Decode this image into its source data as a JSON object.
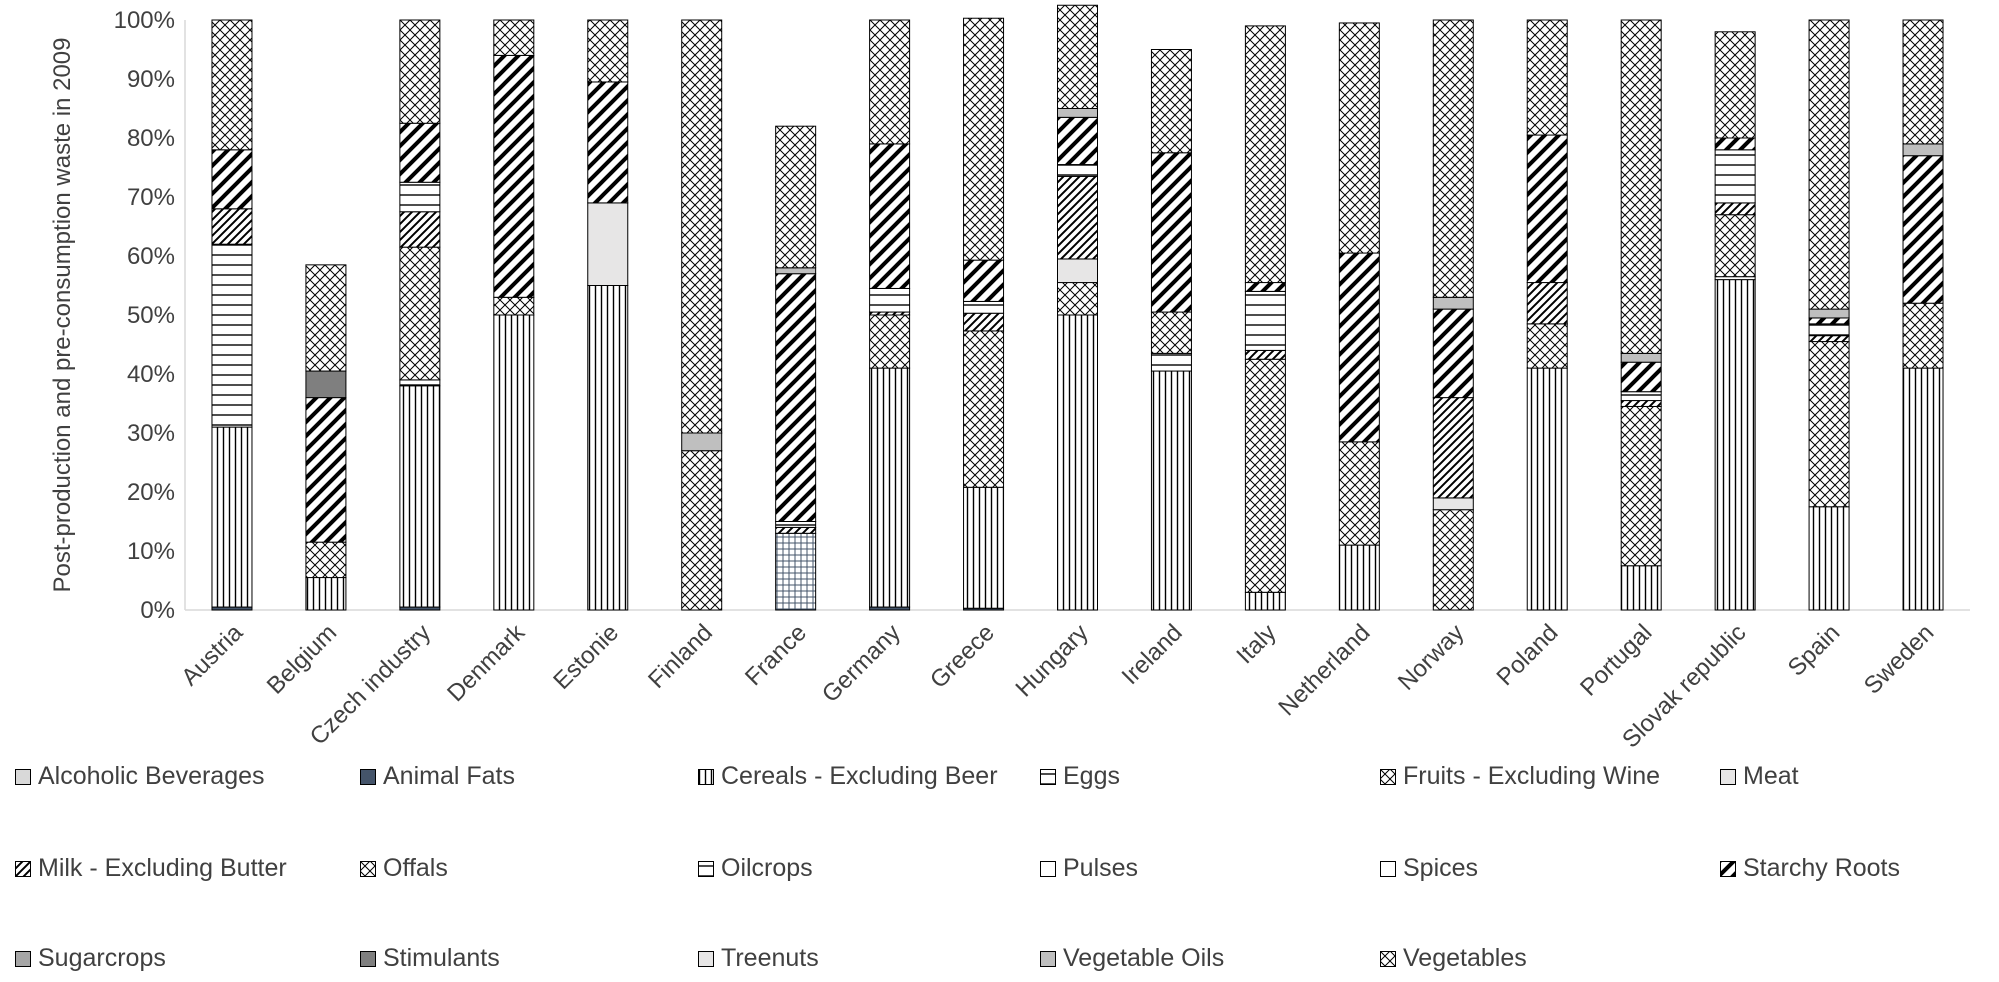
{
  "chart_data": {
    "type": "bar",
    "stacked": true,
    "title": "",
    "xlabel": "",
    "ylabel": "Post-production and pre-consumption waste in 2009",
    "ylim": [
      0,
      100
    ],
    "yticks": [
      "0%",
      "10%",
      "20%",
      "30%",
      "40%",
      "50%",
      "60%",
      "70%",
      "80%",
      "90%",
      "100%"
    ],
    "categories": [
      "Austria",
      "Belgium",
      "Czech industry",
      "Denmark",
      "Estonie",
      "Finland",
      "France",
      "Germany",
      "Greece",
      "Hungary",
      "Ireland",
      "Italy",
      "Netherland",
      "Norway",
      "Poland",
      "Portugal",
      "Slovak republic",
      "Spain",
      "Sweden"
    ],
    "series": [
      {
        "name": "Alcoholic Beverages",
        "color": "#d9d9d9",
        "pattern": "solid-light",
        "values": [
          0,
          0,
          0,
          0,
          0,
          0,
          0,
          0,
          0,
          0,
          0,
          0,
          0,
          0,
          0,
          0,
          0,
          0,
          0
        ]
      },
      {
        "name": "Animal Fats",
        "color": "#44546a",
        "pattern": "solid-dark",
        "values": [
          0.5,
          0,
          0.5,
          0,
          0,
          0,
          0,
          0.5,
          0.3,
          0,
          0,
          0,
          0,
          0,
          0,
          0,
          0,
          0,
          0
        ]
      },
      {
        "name": "Cereals - Excluding Beer",
        "color": "#000000",
        "pattern": "vertical",
        "values": [
          30.5,
          5.5,
          37.5,
          50,
          55,
          0,
          0,
          40.5,
          20.5,
          50,
          40.5,
          3,
          11,
          0,
          41,
          7.5,
          56,
          17.5,
          41
        ]
      },
      {
        "name": "Eggs",
        "color": "#000000",
        "pattern": "horizontal",
        "values": [
          31,
          0,
          1,
          0,
          0,
          0,
          13,
          0,
          0,
          0,
          3,
          0,
          0,
          0,
          0,
          0,
          0.5,
          0,
          0
        ]
      },
      {
        "name": "Fruits - Excluding Wine",
        "color": "#000000",
        "pattern": "crosshatch",
        "values": [
          0,
          6,
          22.5,
          3,
          0,
          27,
          0,
          9,
          26.5,
          5.5,
          7,
          39.5,
          17.5,
          17,
          7.5,
          27,
          10.5,
          28,
          11
        ]
      },
      {
        "name": "Meat",
        "color": "#e7e6e6",
        "pattern": "solid-light",
        "values": [
          0,
          0,
          0,
          0,
          14,
          0,
          0,
          0,
          0,
          4,
          0,
          0,
          0,
          2,
          0,
          0,
          0,
          0,
          0
        ]
      },
      {
        "name": "Milk - Excluding Butter",
        "color": "#000000",
        "pattern": "diagonal",
        "values": [
          6,
          0,
          6,
          0,
          0,
          0,
          1,
          0.5,
          3,
          14,
          0,
          1.5,
          0,
          17,
          7,
          1,
          2,
          1,
          0
        ]
      },
      {
        "name": "Offals",
        "color": "#000000",
        "pattern": "crosshatch",
        "values": [
          0,
          0,
          0,
          0,
          0,
          0,
          0,
          0,
          0,
          0,
          0,
          0,
          0,
          0,
          0,
          0,
          0,
          0,
          0
        ]
      },
      {
        "name": "Oilcrops",
        "color": "#000000",
        "pattern": "horizontal",
        "values": [
          0,
          0,
          5,
          0,
          0,
          0,
          1,
          4,
          2,
          2,
          0,
          10,
          0,
          0,
          0,
          1.5,
          9,
          2,
          0
        ]
      },
      {
        "name": "Pulses",
        "color": "#ffffff",
        "pattern": "outline",
        "values": [
          0,
          0,
          0,
          0,
          0,
          0,
          0,
          0,
          0,
          0,
          0,
          0,
          0,
          0,
          0,
          0,
          0,
          0,
          0
        ]
      },
      {
        "name": "Spices",
        "color": "#ffffff",
        "pattern": "outline",
        "values": [
          0,
          0,
          0,
          0,
          0,
          0,
          0,
          0,
          0,
          0,
          0,
          0,
          0,
          0,
          0,
          0,
          0,
          0,
          0
        ]
      },
      {
        "name": "Starchy Roots",
        "color": "#000000",
        "pattern": "diagonal-bold",
        "values": [
          10,
          24.5,
          10,
          41,
          20.5,
          0,
          42,
          24.5,
          7,
          8,
          27,
          1.5,
          32,
          15,
          25,
          5,
          2,
          1,
          25
        ]
      },
      {
        "name": "Sugarcrops",
        "color": "#a6a6a6",
        "pattern": "solid-mid",
        "values": [
          0,
          0,
          0,
          0,
          0,
          0,
          0,
          0,
          0,
          0,
          0,
          0,
          0,
          0,
          0,
          0,
          0,
          0,
          0
        ]
      },
      {
        "name": "Stimulants",
        "color": "#7f7f7f",
        "pattern": "solid-dark",
        "values": [
          0,
          4.5,
          0,
          0,
          0,
          0,
          0,
          0,
          0,
          0,
          0,
          0,
          0,
          0,
          0,
          0,
          0,
          0,
          0
        ]
      },
      {
        "name": "Treenuts",
        "color": "#e7e6e6",
        "pattern": "solid-light",
        "values": [
          0,
          0,
          0,
          0,
          0,
          0,
          0,
          0,
          0,
          0,
          0,
          0,
          0,
          0,
          0,
          0,
          0,
          0,
          0
        ]
      },
      {
        "name": "Vegetable Oils",
        "color": "#bfbfbf",
        "pattern": "solid-mid",
        "values": [
          0,
          0,
          0,
          0,
          0,
          3,
          1,
          0,
          0,
          1.5,
          0,
          0,
          0,
          2,
          0,
          1.5,
          0,
          1.5,
          2
        ]
      },
      {
        "name": "Vegetables",
        "color": "#000000",
        "pattern": "crosshatch",
        "values": [
          22,
          18,
          17.5,
          6,
          10.5,
          70,
          24,
          21,
          41,
          17.5,
          17.5,
          43.5,
          39,
          47,
          19.5,
          56.5,
          18,
          49,
          21
        ]
      }
    ],
    "legend_placement": "bottom",
    "grid": false
  }
}
